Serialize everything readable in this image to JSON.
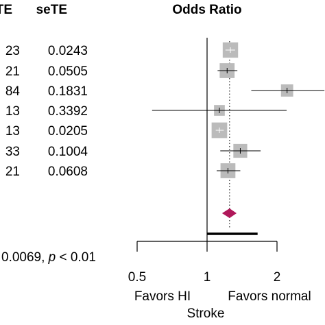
{
  "headers": {
    "te": "TE",
    "sete": "seTE",
    "or": "Odds Ratio"
  },
  "rows": [
    {
      "te": "23",
      "sete": "0.0243"
    },
    {
      "te": "21",
      "sete": "0.0505"
    },
    {
      "te": "84",
      "sete": "0.1831"
    },
    {
      "te": "13",
      "sete": "0.3392"
    },
    {
      "te": "13",
      "sete": "0.0205"
    },
    {
      "te": "33",
      "sete": "0.1004"
    },
    {
      "te": "21",
      "sete": "0.0608"
    }
  ],
  "heterogeneity": {
    "prefix": "0.0069, ",
    "p_symbol": "p",
    "suffix": " < 0.01"
  },
  "favors": {
    "left": "Favors HI",
    "right": "Favors normal"
  },
  "xlabel": "Stroke",
  "colors": {
    "study_box": "#bbbbbb",
    "summary_diamond": "#b0185a",
    "ci_line": "#000000"
  },
  "chart_data": {
    "type": "forest",
    "scale": "log",
    "x_ticks": [
      0.5,
      1,
      2
    ],
    "x_tick_labels": [
      "0.5",
      "1",
      "2"
    ],
    "reference_line": 1,
    "summary_line": 1.25,
    "studies": [
      {
        "or": 1.26,
        "lower": 1.2,
        "upper": 1.32,
        "weight": 0.16
      },
      {
        "or": 1.22,
        "lower": 1.11,
        "upper": 1.35,
        "weight": 0.14
      },
      {
        "or": 2.21,
        "lower": 1.55,
        "upper": 3.2,
        "weight": 0.05
      },
      {
        "or": 1.13,
        "lower": 0.58,
        "upper": 2.2,
        "weight": 0.02
      },
      {
        "or": 1.13,
        "lower": 1.09,
        "upper": 1.18,
        "weight": 0.17
      },
      {
        "or": 1.39,
        "lower": 1.14,
        "upper": 1.7,
        "weight": 0.1
      },
      {
        "or": 1.23,
        "lower": 1.1,
        "upper": 1.39,
        "weight": 0.14
      }
    ],
    "summary": {
      "or": 1.25,
      "lower": 1.16,
      "upper": 1.34
    },
    "prediction_interval": {
      "lower": 1.0,
      "upper": 1.65
    }
  }
}
